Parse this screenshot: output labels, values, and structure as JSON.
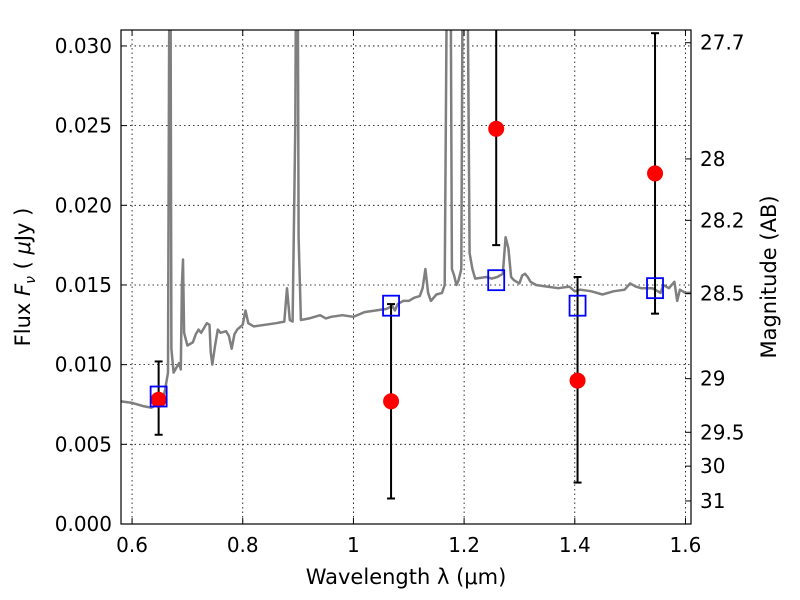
{
  "chart_data": {
    "type": "scatter",
    "xlabel": "Wavelength  λ (μm)",
    "ylabel": "Flux  F_ν  ( μJy )",
    "ylabel_parts": [
      "Flux  ",
      "F",
      "ν",
      "  ( ",
      "μ",
      "Jy )"
    ],
    "y2label": "Magnitude (AB)",
    "xlim": [
      0.58,
      1.61
    ],
    "ylim": [
      0.0,
      0.031
    ],
    "grid": true,
    "x_ticks": [
      0.6,
      0.8,
      1.0,
      1.2,
      1.4,
      1.6
    ],
    "x_tick_labels": [
      "0.6",
      "0.8",
      "1",
      "1.2",
      "1.4",
      "1.6"
    ],
    "y_ticks": [
      0.0,
      0.005,
      0.01,
      0.015,
      0.02,
      0.025,
      0.03
    ],
    "y_tick_labels": [
      "0.000",
      "0.005",
      "0.010",
      "0.015",
      "0.020",
      "0.025",
      "0.030"
    ],
    "y2_ticks": [
      27.7,
      28,
      28.2,
      28.5,
      29,
      29.5,
      30,
      31
    ],
    "y2_tick_labels": [
      "27.7",
      "28",
      "28.2",
      "28.5",
      "29",
      "29.5",
      "30",
      "31"
    ],
    "colors": {
      "spectrum": "#7f7f7f",
      "photometry": "#ff0000",
      "model_photometry": "#0000ff",
      "errorbar": "#000000"
    },
    "series": [
      {
        "kind": "spectrum",
        "points": [
          [
            0.58,
            0.0077
          ],
          [
            0.6,
            0.0076
          ],
          [
            0.62,
            0.0074
          ],
          [
            0.635,
            0.0073
          ],
          [
            0.645,
            0.0075
          ],
          [
            0.655,
            0.0077
          ],
          [
            0.66,
            0.0085
          ],
          [
            0.665,
            0.0095
          ],
          [
            0.667,
            0.03
          ],
          [
            0.669,
            0.04
          ],
          [
            0.671,
            0.011
          ],
          [
            0.675,
            0.0095
          ],
          [
            0.68,
            0.0098
          ],
          [
            0.685,
            0.0101
          ],
          [
            0.688,
            0.0097
          ],
          [
            0.69,
            0.015
          ],
          [
            0.692,
            0.0166
          ],
          [
            0.694,
            0.012
          ],
          [
            0.7,
            0.0112
          ],
          [
            0.71,
            0.0114
          ],
          [
            0.715,
            0.0119
          ],
          [
            0.72,
            0.0122
          ],
          [
            0.725,
            0.012
          ],
          [
            0.73,
            0.0123
          ],
          [
            0.735,
            0.0126
          ],
          [
            0.74,
            0.0125
          ],
          [
            0.742,
            0.0108
          ],
          [
            0.745,
            0.01
          ],
          [
            0.75,
            0.0112
          ],
          [
            0.755,
            0.0122
          ],
          [
            0.76,
            0.012
          ],
          [
            0.77,
            0.0121
          ],
          [
            0.775,
            0.0118
          ],
          [
            0.78,
            0.011
          ],
          [
            0.785,
            0.0119
          ],
          [
            0.79,
            0.0122
          ],
          [
            0.8,
            0.0125
          ],
          [
            0.805,
            0.0134
          ],
          [
            0.81,
            0.0126
          ],
          [
            0.82,
            0.0124
          ],
          [
            0.84,
            0.0125
          ],
          [
            0.86,
            0.0126
          ],
          [
            0.875,
            0.0127
          ],
          [
            0.88,
            0.0148
          ],
          [
            0.885,
            0.0128
          ],
          [
            0.89,
            0.0127
          ],
          [
            0.895,
            0.025
          ],
          [
            0.897,
            0.04
          ],
          [
            0.899,
            0.04
          ],
          [
            0.901,
            0.018
          ],
          [
            0.905,
            0.0128
          ],
          [
            0.92,
            0.0129
          ],
          [
            0.94,
            0.0131
          ],
          [
            0.95,
            0.0129
          ],
          [
            0.96,
            0.013
          ],
          [
            0.98,
            0.0131
          ],
          [
            1.0,
            0.013
          ],
          [
            1.02,
            0.0133
          ],
          [
            1.04,
            0.0134
          ],
          [
            1.06,
            0.0135
          ],
          [
            1.07,
            0.0137
          ],
          [
            1.075,
            0.0134
          ],
          [
            1.08,
            0.0138
          ],
          [
            1.09,
            0.014
          ],
          [
            1.1,
            0.014
          ],
          [
            1.11,
            0.0142
          ],
          [
            1.12,
            0.0143
          ],
          [
            1.125,
            0.0148
          ],
          [
            1.13,
            0.016
          ],
          [
            1.135,
            0.0145
          ],
          [
            1.14,
            0.014
          ],
          [
            1.15,
            0.0144
          ],
          [
            1.16,
            0.0145
          ],
          [
            1.165,
            0.015
          ],
          [
            1.17,
            0.04
          ],
          [
            1.175,
            0.04
          ],
          [
            1.178,
            0.016
          ],
          [
            1.182,
            0.0156
          ],
          [
            1.186,
            0.015
          ],
          [
            1.19,
            0.0153
          ],
          [
            1.195,
            0.016
          ],
          [
            1.198,
            0.04
          ],
          [
            1.205,
            0.04
          ],
          [
            1.21,
            0.017
          ],
          [
            1.215,
            0.016
          ],
          [
            1.22,
            0.0154
          ],
          [
            1.24,
            0.0155
          ],
          [
            1.25,
            0.0154
          ],
          [
            1.26,
            0.0155
          ],
          [
            1.27,
            0.0157
          ],
          [
            1.275,
            0.018
          ],
          [
            1.28,
            0.0173
          ],
          [
            1.285,
            0.0155
          ],
          [
            1.29,
            0.0153
          ],
          [
            1.3,
            0.0151
          ],
          [
            1.305,
            0.0156
          ],
          [
            1.31,
            0.0157
          ],
          [
            1.315,
            0.0155
          ],
          [
            1.32,
            0.0152
          ],
          [
            1.33,
            0.015
          ],
          [
            1.35,
            0.0149
          ],
          [
            1.37,
            0.0148
          ],
          [
            1.39,
            0.0149
          ],
          [
            1.4,
            0.0146
          ],
          [
            1.41,
            0.0147
          ],
          [
            1.43,
            0.0146
          ],
          [
            1.45,
            0.0144
          ],
          [
            1.47,
            0.0146
          ],
          [
            1.49,
            0.0147
          ],
          [
            1.5,
            0.0151
          ],
          [
            1.51,
            0.0149
          ],
          [
            1.52,
            0.0148
          ],
          [
            1.54,
            0.0148
          ],
          [
            1.555,
            0.0145
          ],
          [
            1.56,
            0.015
          ],
          [
            1.57,
            0.0148
          ],
          [
            1.58,
            0.0152
          ],
          [
            1.585,
            0.014
          ],
          [
            1.59,
            0.0147
          ],
          [
            1.6,
            0.0145
          ],
          [
            1.61,
            0.0145
          ]
        ]
      },
      {
        "kind": "photometry",
        "points": [
          {
            "x": 0.648,
            "y": 0.0078,
            "err_low": 0.0056,
            "err_high": 0.0102
          },
          {
            "x": 1.068,
            "y": 0.0077,
            "err_low": 0.0016,
            "err_high": 0.0138
          },
          {
            "x": 1.258,
            "y": 0.0248,
            "err_low": 0.0175,
            "err_high": 0.032
          },
          {
            "x": 1.405,
            "y": 0.009,
            "err_low": 0.0026,
            "err_high": 0.0155
          },
          {
            "x": 1.545,
            "y": 0.022,
            "err_low": 0.0132,
            "err_high": 0.0308
          }
        ]
      },
      {
        "kind": "model_photometry",
        "points": [
          {
            "x": 0.648,
            "y": 0.008
          },
          {
            "x": 1.068,
            "y": 0.0137
          },
          {
            "x": 1.258,
            "y": 0.0153
          },
          {
            "x": 1.405,
            "y": 0.0137
          },
          {
            "x": 1.545,
            "y": 0.0148
          }
        ]
      }
    ]
  }
}
